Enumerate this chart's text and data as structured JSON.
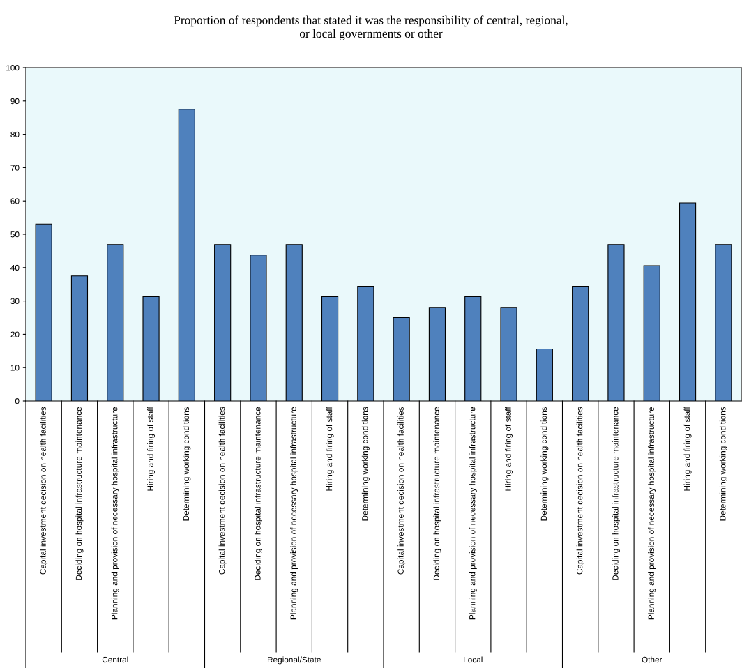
{
  "chart_data": {
    "type": "bar",
    "title": "Proportion of respondents that stated it was the responsibility of central, regional,\nor local governments or other",
    "categories": [
      "Capital investment decision on health facilities",
      "Deciding on hospital infrastructure maintenance",
      "Planning and provision of necessary hospital infrastructure",
      "Hiring and firing of staff",
      "Determining working conditions",
      "Capital investment decision on health facilities",
      "Deciding on hospital infrastructure maintenance",
      "Planning and provision of necessary hospital infrastructure",
      "Hiring and firing of staff",
      "Determining working conditions",
      "Capital investment decision on health facilities",
      "Deciding on hospital infrastructure maintenance",
      "Planning and provision of necessary hospital infrastructure",
      "Hiring and firing of staff",
      "Determining working conditions",
      "Capital investment decision on health facilities",
      "Deciding on hospital infrastructure maintenance",
      "Planning and provision of necessary hospital infrastructure",
      "Hiring and firing of staff",
      "Determining working conditions"
    ],
    "values": [
      53.1,
      37.5,
      46.9,
      31.3,
      87.5,
      46.9,
      43.8,
      46.9,
      31.3,
      34.4,
      25.0,
      28.1,
      31.3,
      28.1,
      15.6,
      34.4,
      46.9,
      40.6,
      59.4,
      46.9
    ],
    "color": "#4f81bd",
    "annotations": [
      "Central",
      "Regional/State",
      "Local",
      "Other"
    ],
    "ylim": [
      0,
      100
    ],
    "yticks": [
      0,
      10,
      20,
      30,
      40,
      50,
      60,
      70,
      80,
      90,
      100
    ],
    "grid": false
  }
}
